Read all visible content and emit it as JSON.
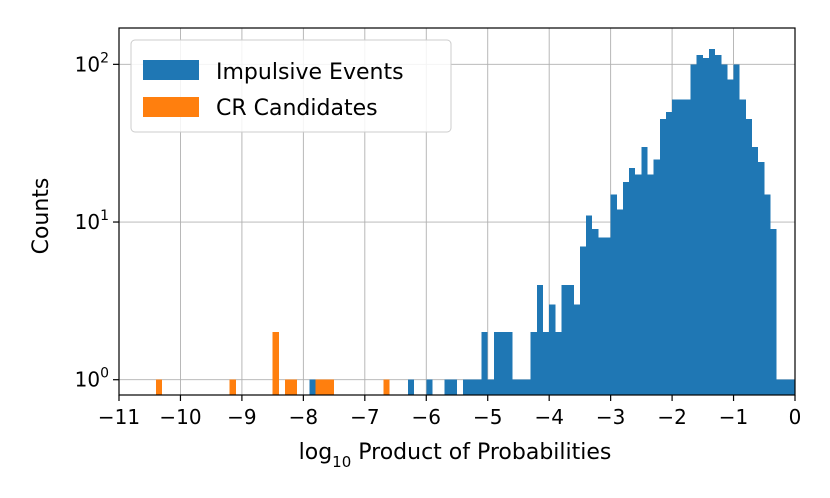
{
  "chart_data": {
    "type": "bar",
    "xlabel_main": "log",
    "xlabel_sub": "10",
    "xlabel_rest": " Product of Probabilities",
    "ylabel": "Counts",
    "xlim": [
      -11,
      0
    ],
    "ylim": [
      0.8,
      170
    ],
    "yscale": "log",
    "grid": true,
    "legend_position": "upper left",
    "bin_width": 0.1,
    "x_ticks": [
      -11,
      -10,
      -9,
      -8,
      -7,
      -6,
      -5,
      -4,
      -3,
      -2,
      -1,
      0
    ],
    "y_ticks": [
      {
        "value": 1,
        "base": "10",
        "exp": "0"
      },
      {
        "value": 10,
        "base": "10",
        "exp": "1"
      },
      {
        "value": 100,
        "base": "10",
        "exp": "2"
      }
    ],
    "series": [
      {
        "name": "Impulsive Events",
        "color": "#1f77b4",
        "bins": [
          [
            -7.9,
            1
          ],
          [
            -6.3,
            1
          ],
          [
            -6.0,
            1
          ],
          [
            -5.7,
            1
          ],
          [
            -5.6,
            1
          ],
          [
            -5.4,
            1
          ],
          [
            -5.3,
            1
          ],
          [
            -5.2,
            1
          ],
          [
            -5.1,
            2
          ],
          [
            -5.0,
            1
          ],
          [
            -4.9,
            2
          ],
          [
            -4.8,
            2
          ],
          [
            -4.7,
            2
          ],
          [
            -4.6,
            1
          ],
          [
            -4.5,
            1
          ],
          [
            -4.4,
            1
          ],
          [
            -4.3,
            2
          ],
          [
            -4.2,
            4
          ],
          [
            -4.1,
            2
          ],
          [
            -4.0,
            3
          ],
          [
            -3.9,
            2
          ],
          [
            -3.8,
            4
          ],
          [
            -3.7,
            4
          ],
          [
            -3.6,
            3
          ],
          [
            -3.5,
            7
          ],
          [
            -3.4,
            11
          ],
          [
            -3.3,
            9
          ],
          [
            -3.2,
            8
          ],
          [
            -3.1,
            8
          ],
          [
            -3.0,
            15
          ],
          [
            -2.9,
            12
          ],
          [
            -2.8,
            18
          ],
          [
            -2.7,
            22
          ],
          [
            -2.6,
            20
          ],
          [
            -2.5,
            30
          ],
          [
            -2.4,
            20
          ],
          [
            -2.3,
            25
          ],
          [
            -2.2,
            45
          ],
          [
            -2.1,
            50
          ],
          [
            -2.0,
            60
          ],
          [
            -1.9,
            60
          ],
          [
            -1.8,
            60
          ],
          [
            -1.7,
            100
          ],
          [
            -1.6,
            115
          ],
          [
            -1.5,
            110
          ],
          [
            -1.4,
            125
          ],
          [
            -1.3,
            115
          ],
          [
            -1.2,
            100
          ],
          [
            -1.1,
            80
          ],
          [
            -1.0,
            100
          ],
          [
            -0.9,
            60
          ],
          [
            -0.8,
            45
          ],
          [
            -0.7,
            30
          ],
          [
            -0.6,
            24
          ],
          [
            -0.5,
            15
          ],
          [
            -0.4,
            9
          ],
          [
            -0.3,
            1
          ],
          [
            -0.2,
            1
          ],
          [
            -0.1,
            1
          ]
        ]
      },
      {
        "name": "CR Candidates",
        "color": "#ff7f0e",
        "bins": [
          [
            -10.4,
            1
          ],
          [
            -9.2,
            1
          ],
          [
            -8.5,
            2
          ],
          [
            -8.3,
            1
          ],
          [
            -8.2,
            1
          ],
          [
            -7.8,
            1
          ],
          [
            -7.7,
            1
          ],
          [
            -7.6,
            1
          ],
          [
            -6.7,
            1
          ]
        ]
      }
    ]
  }
}
